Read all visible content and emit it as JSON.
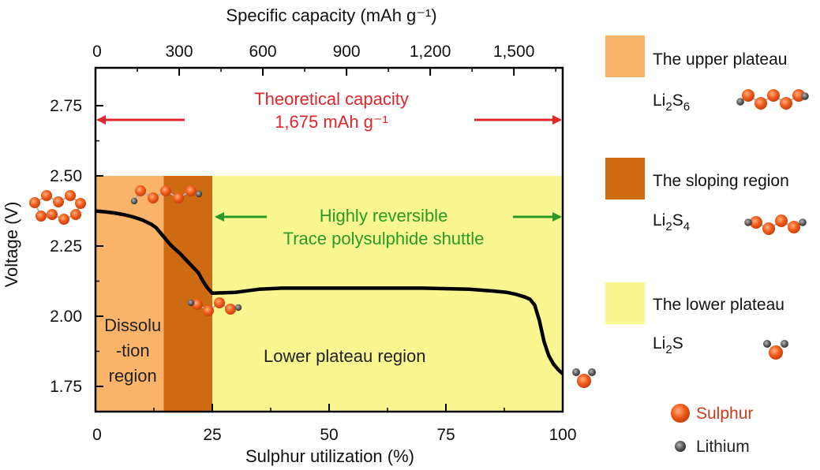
{
  "chart_data": {
    "type": "line",
    "title": "",
    "xlabel": "Sulphur utilization (%)",
    "ylabel": "Voltage (V)",
    "x2label": "Specific capacity (mAh g⁻¹)",
    "xlim": [
      0,
      100
    ],
    "ylim": [
      1.66,
      2.885
    ],
    "xticks": [
      0,
      25,
      50,
      75,
      100
    ],
    "xtick_labels": [
      "0",
      "25",
      "50",
      "75",
      "100"
    ],
    "yticks": [
      1.75,
      2.0,
      2.25,
      2.5,
      2.75
    ],
    "ytick_labels": [
      "1.75",
      "2.00",
      "2.25",
      "2.50",
      "2.75"
    ],
    "x2ticks": [
      0,
      300,
      600,
      900,
      1200,
      1500
    ],
    "x2tick_labels": [
      "0",
      "300",
      "600",
      "900",
      "1,200",
      "1,500"
    ],
    "x2lim": [
      0,
      1675
    ],
    "grid": false,
    "series": [
      {
        "x": [
          0,
          2,
          4,
          6,
          8,
          10,
          12,
          13,
          14,
          15,
          16,
          17,
          18,
          20,
          22,
          23,
          24,
          25,
          30,
          35,
          40,
          50,
          60,
          70,
          80,
          85,
          88,
          90,
          92,
          93,
          94,
          95,
          96,
          97,
          98,
          99,
          100
        ],
        "y": [
          2.375,
          2.372,
          2.368,
          2.362,
          2.354,
          2.343,
          2.327,
          2.315,
          2.295,
          2.275,
          2.255,
          2.24,
          2.225,
          2.19,
          2.155,
          2.125,
          2.1,
          2.082,
          2.085,
          2.096,
          2.1,
          2.1,
          2.1,
          2.1,
          2.096,
          2.09,
          2.085,
          2.078,
          2.068,
          2.06,
          2.04,
          1.985,
          1.91,
          1.86,
          1.83,
          1.81,
          1.795
        ],
        "color": "#000000"
      }
    ],
    "regions": [
      {
        "x": [
          0,
          14.6
        ],
        "y": [
          1.66,
          2.5
        ],
        "color": "#F9B46A",
        "label_lines": [
          "Dissolu",
          "-tion",
          "region"
        ]
      },
      {
        "x": [
          14.6,
          25
        ],
        "y": [
          1.66,
          2.5
        ],
        "color": "#CD6A12",
        "label_lines": []
      },
      {
        "x": [
          25,
          100
        ],
        "y": [
          1.66,
          2.5
        ],
        "color": "#FAF791",
        "label_lines": [
          "Lower plateau region"
        ]
      }
    ],
    "annotations": [
      {
        "lines": [
          "Theoretical capacity",
          "1,675 mAh g⁻¹"
        ],
        "color": "#E0262B"
      },
      {
        "lines": [
          "Highly reversible",
          "Trace polysulphide shuttle"
        ],
        "color": "#2A9A26"
      }
    ],
    "legend": {
      "placement": "right",
      "items": [
        {
          "label": "The upper plateau",
          "color": "#F9B46A",
          "formula": "Li2S6"
        },
        {
          "label": "The sloping region",
          "color": "#CD6A12",
          "formula": "Li2S4"
        },
        {
          "label": "The lower plateau",
          "color": "#FAF791",
          "formula": "Li2S"
        }
      ],
      "atoms": [
        {
          "label": "Sulphur",
          "color": "#F05A1A",
          "label_color": "#D23A1A"
        },
        {
          "label": "Lithium",
          "color": "#555555",
          "label_color": "#222222"
        }
      ]
    }
  }
}
